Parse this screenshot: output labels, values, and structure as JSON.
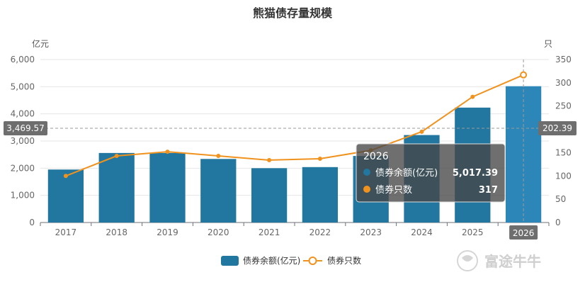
{
  "chart_data": {
    "type": "bar",
    "title": "熊猫债存量规模",
    "categories": [
      "2017",
      "2018",
      "2019",
      "2020",
      "2021",
      "2022",
      "2023",
      "2024",
      "2025",
      "2026"
    ],
    "series": [
      {
        "name": "债券余额(亿元)",
        "kind": "bar",
        "axis": "left",
        "color": "#21779f",
        "values": [
          1950,
          2560,
          2560,
          2340,
          2000,
          2040,
          2450,
          3220,
          4230,
          5017.39
        ]
      },
      {
        "name": "债券只数",
        "kind": "line",
        "axis": "right",
        "color": "#f0921e",
        "values": [
          100,
          143,
          152,
          143,
          134,
          137,
          155,
          195,
          270,
          317
        ]
      }
    ],
    "left_axis": {
      "unit": "亿元",
      "ylim": [
        0,
        6000
      ],
      "ticks": [
        "0",
        "1,000",
        "2,000",
        "3,000",
        "4,000",
        "5,000",
        "6,000"
      ],
      "tick_values": [
        0,
        1000,
        2000,
        3000,
        4000,
        5000,
        6000
      ]
    },
    "right_axis": {
      "unit": "只",
      "ylim": [
        0,
        350
      ],
      "ticks": [
        "0",
        "50",
        "100",
        "150",
        "200",
        "250",
        "300",
        "350"
      ],
      "tick_values": [
        0,
        50,
        100,
        150,
        200,
        250,
        300,
        350
      ]
    },
    "crosshair": {
      "category_index": 9,
      "left_label": "3,469.57",
      "right_label": "202.39"
    },
    "tooltip": {
      "title": "2026",
      "rows": [
        {
          "label": "债券余额(亿元)",
          "value": "5,017.39",
          "color": "#21779f"
        },
        {
          "label": "债券只数",
          "value": "317",
          "color": "#f0921e"
        }
      ]
    },
    "legend": {
      "position": "bottom",
      "items": [
        {
          "label": "债券余额(亿元)"
        },
        {
          "label": "债券只数"
        }
      ]
    },
    "grid": true,
    "watermark": "富途牛牛"
  }
}
